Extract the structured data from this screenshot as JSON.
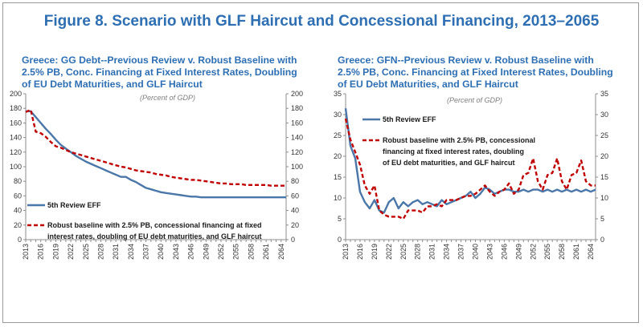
{
  "figure": {
    "title": "Figure 8. Scenario with GLF Haircut and Concessional Financing, 2013–2065"
  },
  "colors": {
    "title": "#2e6fb3",
    "series_blue": "#4a76a8",
    "series_red": "#c00000"
  },
  "chart_data": [
    {
      "type": "line",
      "title_lines": [
        "Greece: GG Debt--Previous Review v. Robust Baseline with",
        "2.5% PB, Conc. Financing at Fixed Interest Rates, Doubling",
        "of EU Debt Maturities, and GLF Haircut"
      ],
      "subtitle": "(Percent of GDP)",
      "x_ticks": [
        "2013",
        "2016",
        "2019",
        "2022",
        "2025",
        "2028",
        "2031",
        "2034",
        "2037",
        "2040",
        "2043",
        "2046",
        "2049",
        "2052",
        "2055",
        "2058",
        "2061",
        "2064"
      ],
      "x_range": [
        2013,
        2065
      ],
      "ylim": [
        0,
        200
      ],
      "y_ticks": [
        0,
        20,
        40,
        60,
        80,
        100,
        120,
        140,
        160,
        180,
        200
      ],
      "y_ticks_right": [
        0,
        20,
        40,
        60,
        80,
        100,
        120,
        140,
        160,
        180,
        200
      ],
      "legend": [
        {
          "label_lines": [
            "5th Review EFF"
          ]
        },
        {
          "label_lines": [
            "Robust baseline with 2.5% PB, concessional financing at fixed",
            "interest rates, doubling of EU debt maturities, and GLF haircut"
          ]
        }
      ],
      "series": [
        {
          "style": "solid",
          "x": [
            2013,
            2014,
            2015,
            2016,
            2017,
            2018,
            2019,
            2020,
            2021,
            2022,
            2023,
            2024,
            2025,
            2026,
            2027,
            2028,
            2029,
            2030,
            2031,
            2032,
            2033,
            2034,
            2035,
            2036,
            2037,
            2038,
            2039,
            2040,
            2041,
            2042,
            2043,
            2044,
            2045,
            2046,
            2047,
            2048,
            2049,
            2050,
            2051,
            2052,
            2053,
            2054,
            2055,
            2056,
            2057,
            2058,
            2059,
            2060,
            2061,
            2062,
            2063,
            2064,
            2065
          ],
          "values": [
            176,
            176,
            168,
            160,
            152,
            145,
            137,
            130,
            125,
            120,
            115,
            111,
            107,
            104,
            101,
            98,
            95,
            92,
            89,
            86,
            86,
            82,
            79,
            75,
            71,
            69,
            67,
            65,
            64,
            63,
            62,
            61,
            60,
            59,
            59,
            58,
            58,
            58,
            58,
            58,
            58,
            58,
            58,
            58,
            58,
            58,
            58,
            58,
            58,
            58,
            58,
            58,
            58
          ]
        },
        {
          "style": "dashed",
          "x": [
            2013,
            2014,
            2015,
            2016,
            2017,
            2018,
            2019,
            2020,
            2021,
            2022,
            2023,
            2024,
            2025,
            2026,
            2027,
            2028,
            2029,
            2030,
            2031,
            2032,
            2033,
            2034,
            2035,
            2036,
            2037,
            2038,
            2039,
            2040,
            2041,
            2042,
            2043,
            2044,
            2045,
            2046,
            2047,
            2048,
            2049,
            2050,
            2051,
            2052,
            2053,
            2054,
            2055,
            2056,
            2057,
            2058,
            2059,
            2060,
            2061,
            2062,
            2063,
            2064,
            2065
          ],
          "values": [
            175,
            178,
            148,
            146,
            141,
            134,
            128,
            126,
            123,
            120,
            118,
            116,
            114,
            112,
            110,
            108,
            106,
            104,
            102,
            100,
            99,
            97,
            95,
            94,
            93,
            92,
            90,
            89,
            88,
            86,
            85,
            84,
            83,
            82,
            82,
            81,
            80,
            79,
            78,
            77,
            77,
            76,
            76,
            76,
            75,
            75,
            75,
            75,
            75,
            74,
            74,
            74,
            74
          ]
        }
      ]
    },
    {
      "type": "line",
      "title_lines": [
        "Greece: GFN--Previous Review v. Robust Baseline with",
        "2.5% PB, Conc. Financing at Fixed Interest Rates, Doubling",
        "of EU Debt Maturities, and GLF Haircut"
      ],
      "subtitle": "(Percent of GDP)",
      "x_ticks": [
        "2013",
        "2016",
        "2019",
        "2022",
        "2025",
        "2028",
        "2031",
        "2034",
        "2037",
        "2040",
        "2043",
        "2046",
        "2049",
        "2052",
        "2055",
        "2058",
        "2061",
        "2064"
      ],
      "x_range": [
        2013,
        2065
      ],
      "ylim": [
        0,
        35
      ],
      "y_ticks": [
        0,
        5,
        10,
        15,
        20,
        25,
        30,
        35
      ],
      "y_ticks_right": [
        0,
        5,
        10,
        15,
        20,
        25,
        30,
        35
      ],
      "legend": [
        {
          "label_lines": [
            "5th Review EFF"
          ]
        },
        {
          "label_lines": [
            "Robust baseline with 2.5% PB, concessional",
            "financing at fixed interest rates, doubling",
            "of EU debt maturities, and GLF haircut"
          ]
        }
      ],
      "series": [
        {
          "style": "solid",
          "x": [
            2013,
            2014,
            2015,
            2016,
            2017,
            2018,
            2019,
            2020,
            2021,
            2022,
            2023,
            2024,
            2025,
            2026,
            2027,
            2028,
            2029,
            2030,
            2031,
            2032,
            2033,
            2034,
            2035,
            2036,
            2037,
            2038,
            2039,
            2040,
            2041,
            2042,
            2043,
            2044,
            2045,
            2046,
            2047,
            2048,
            2049,
            2050,
            2051,
            2052,
            2053,
            2054,
            2055,
            2056,
            2057,
            2058,
            2059,
            2060,
            2061,
            2062,
            2063,
            2064,
            2065
          ],
          "values": [
            31.5,
            22.5,
            19.5,
            11.5,
            9,
            7.5,
            9.5,
            7,
            6.5,
            9,
            10,
            7.5,
            9,
            8,
            9,
            9.5,
            8.5,
            9,
            8.5,
            8,
            9.5,
            8.5,
            9,
            9.5,
            10,
            10.5,
            11.5,
            10,
            11,
            12.5,
            12,
            11,
            11.5,
            12,
            12,
            11.5,
            11.5,
            12,
            11.5,
            12,
            12,
            11.5,
            12,
            11.5,
            12,
            11.5,
            12,
            11.5,
            12,
            11.5,
            12,
            11.5,
            12
          ]
        },
        {
          "style": "dashed",
          "x": [
            2013,
            2014,
            2015,
            2016,
            2017,
            2018,
            2019,
            2020,
            2021,
            2022,
            2023,
            2024,
            2025,
            2026,
            2027,
            2028,
            2029,
            2030,
            2031,
            2032,
            2033,
            2034,
            2035,
            2036,
            2037,
            2038,
            2039,
            2040,
            2041,
            2042,
            2043,
            2044,
            2045,
            2046,
            2047,
            2048,
            2049,
            2050,
            2051,
            2052,
            2053,
            2054,
            2055,
            2056,
            2057,
            2058,
            2059,
            2060,
            2061,
            2062,
            2063,
            2064,
            2065
          ],
          "values": [
            29,
            24,
            21,
            18,
            13,
            11,
            13,
            7,
            6,
            5.5,
            5.5,
            5.5,
            5,
            7,
            7,
            7,
            6.5,
            8,
            8,
            8.5,
            8,
            9.5,
            9.5,
            9.5,
            10,
            10.5,
            10.5,
            11,
            12,
            13,
            11.5,
            10.5,
            11.5,
            12,
            13.5,
            11,
            12,
            15.5,
            16,
            19.5,
            14,
            12,
            15.5,
            16,
            19.5,
            14,
            12,
            15.5,
            16,
            19,
            14,
            13,
            13
          ]
        }
      ]
    }
  ]
}
